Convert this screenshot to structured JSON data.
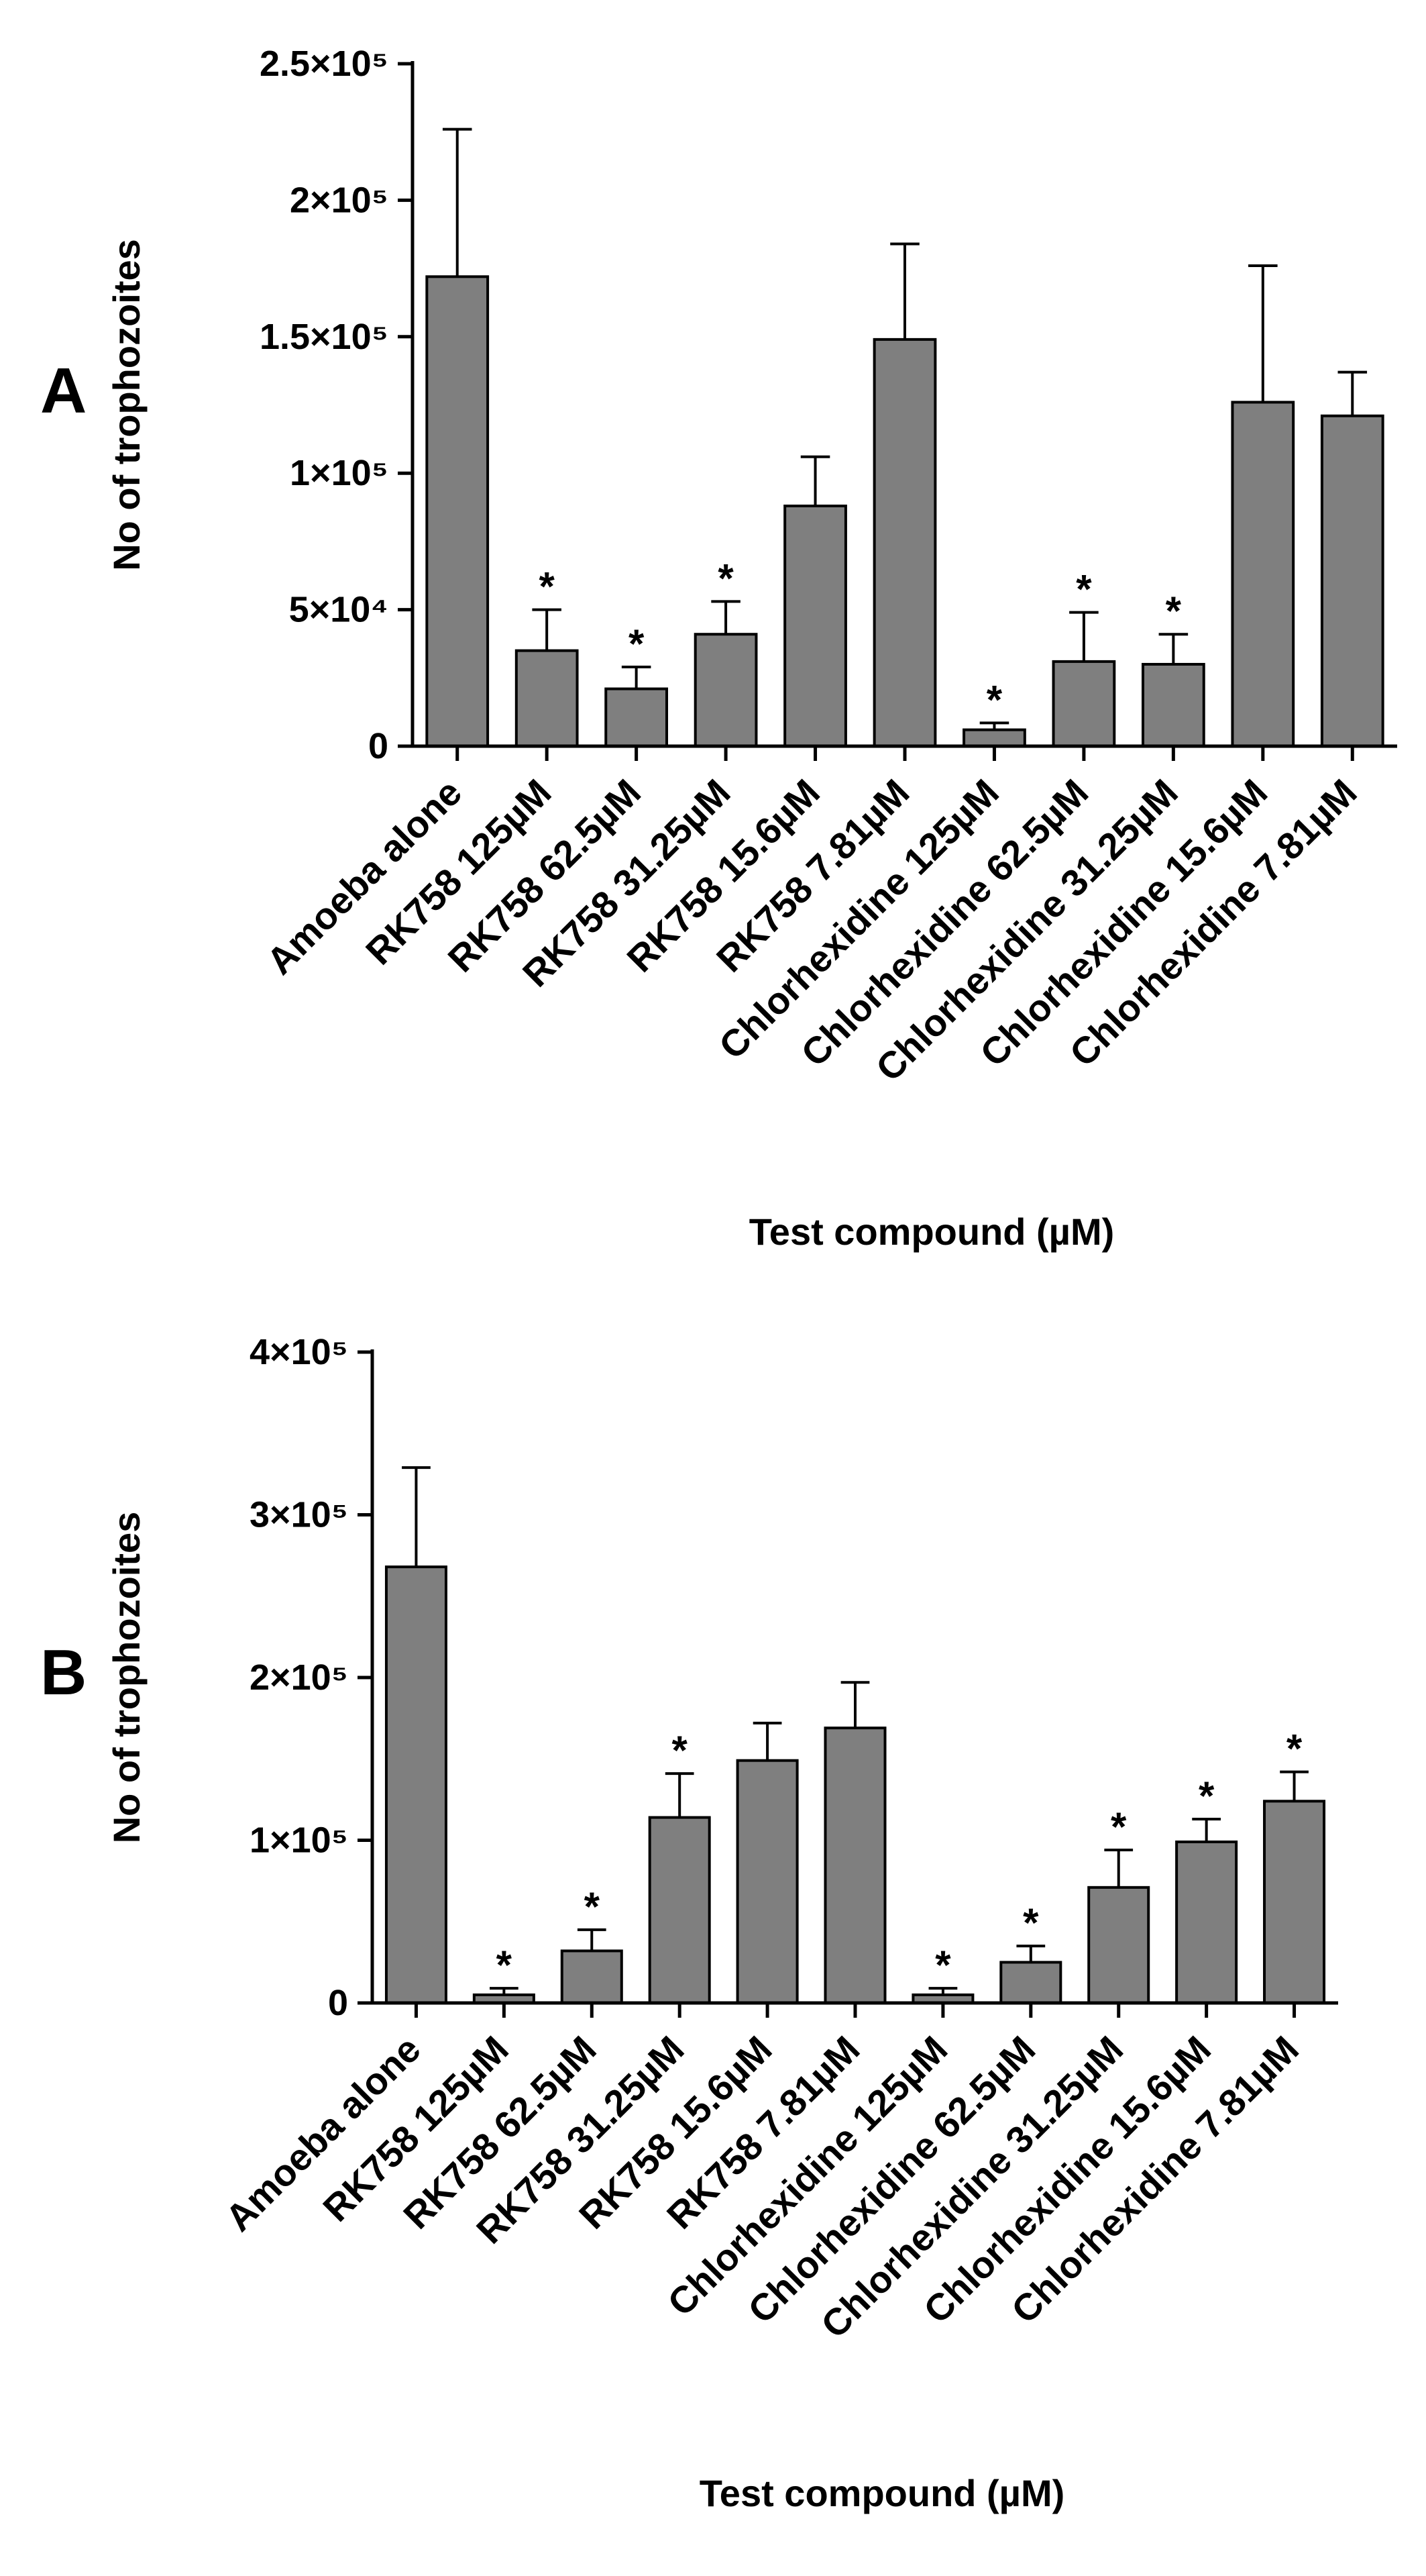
{
  "chart_data": [
    {
      "id": "A",
      "type": "bar",
      "panel_label": "A",
      "ylabel": "No of trophozoites",
      "xlabel": "Test compound (µM)",
      "ylim": [
        0,
        250000
      ],
      "yticks": [
        {
          "value": 0,
          "label": "0"
        },
        {
          "value": 50000,
          "label": "5×10⁴"
        },
        {
          "value": 100000,
          "label": "1×10⁵"
        },
        {
          "value": 150000,
          "label": "1.5×10⁵"
        },
        {
          "value": 200000,
          "label": "2×10⁵"
        },
        {
          "value": 250000,
          "label": "2.5×10⁵"
        }
      ],
      "categories": [
        "Amoeba alone",
        "RK758 125µM",
        "RK758 62.5µM",
        "RK758 31.25µM",
        "RK758 15.6µM",
        "RK758 7.81µM",
        "Chlorhexidine 125µM",
        "Chlorhexidine 62.5µM",
        "Chlorhexidine 31.25µM",
        "Chlorhexidine 15.6µM",
        "Chlorhexidine 7.81µM"
      ],
      "values": [
        172000,
        35000,
        21000,
        41000,
        88000,
        149000,
        6000,
        31000,
        30000,
        126000,
        121000
      ],
      "errors": [
        54000,
        15000,
        8000,
        12000,
        18000,
        35000,
        2500,
        18000,
        11000,
        50000,
        16000
      ],
      "significant": [
        false,
        true,
        true,
        true,
        false,
        false,
        true,
        true,
        true,
        false,
        false
      ],
      "marker": "*"
    },
    {
      "id": "B",
      "type": "bar",
      "panel_label": "B",
      "ylabel": "No of trophozoites",
      "xlabel": "Test compound (µM)",
      "ylim": [
        0,
        400000
      ],
      "yticks": [
        {
          "value": 0,
          "label": "0"
        },
        {
          "value": 100000,
          "label": "1×10⁵"
        },
        {
          "value": 200000,
          "label": "2×10⁵"
        },
        {
          "value": 300000,
          "label": "3×10⁵"
        },
        {
          "value": 400000,
          "label": "4×10⁵"
        }
      ],
      "categories": [
        "Amoeba alone",
        "RK758 125µM",
        "RK758 62.5µM",
        "RK758 31.25µM",
        "RK758 15.6µM",
        "RK758 7.81µM",
        "Chlorhexidine 125µM",
        "Chlorhexidine 62.5µM",
        "Chlorhexidine 31.25µM",
        "Chlorhexidine 15.6µM",
        "Chlorhexidine 7.81µM"
      ],
      "values": [
        268000,
        5000,
        32000,
        114000,
        149000,
        169000,
        5000,
        25000,
        71000,
        99000,
        124000
      ],
      "errors": [
        61000,
        4000,
        13000,
        27000,
        23000,
        28000,
        4000,
        10000,
        23000,
        14000,
        18000
      ],
      "significant": [
        false,
        true,
        true,
        true,
        false,
        false,
        true,
        true,
        true,
        true,
        true
      ],
      "marker": "*"
    }
  ]
}
